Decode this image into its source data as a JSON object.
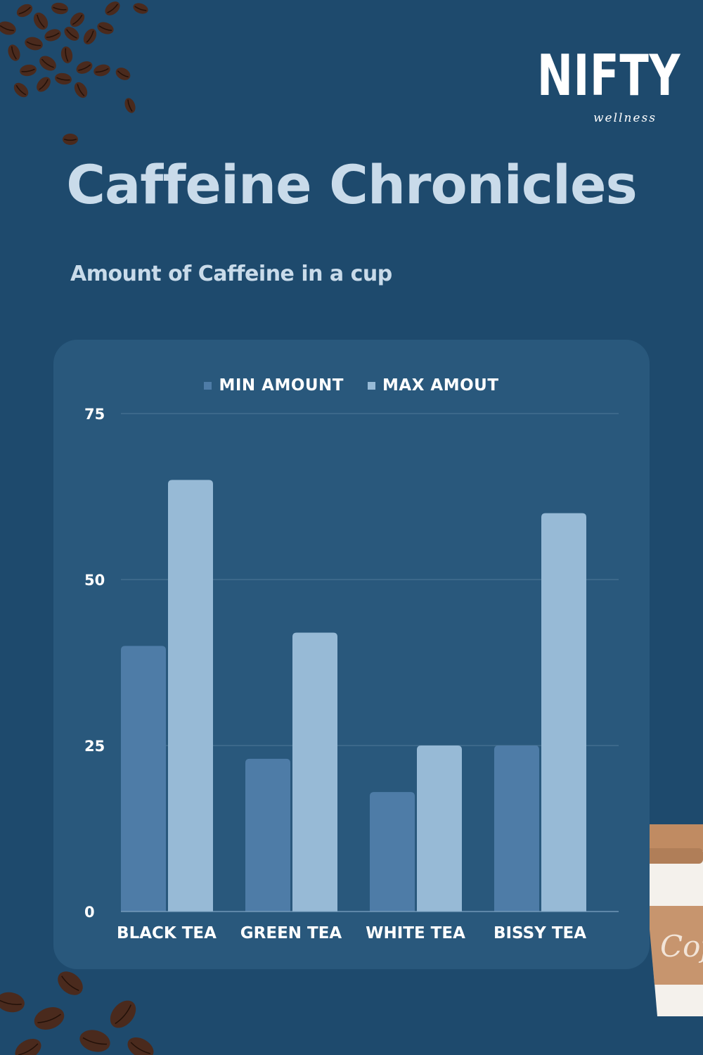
{
  "brand": {
    "name": "NIFTY",
    "tagline": "wellness"
  },
  "title": "Caffeine Chronicles",
  "subtitle": "Amount of Caffeine in a cup",
  "colors": {
    "background": "#1e4a6d",
    "panel": "#29587c",
    "min_series": "#4e7ca7",
    "max_series": "#97bad6",
    "title_text": "#c9dbea"
  },
  "decorations": {
    "top_left": "coffee-beans",
    "bottom_left": "coffee-beans",
    "bottom_right": "coffee-cup",
    "cup_text": "Coffee"
  },
  "chart_data": {
    "type": "bar",
    "categories": [
      "BLACK TEA",
      "GREEN TEA",
      "WHITE TEA",
      "BISSY TEA"
    ],
    "series": [
      {
        "name": "MIN AMOUNT",
        "values": [
          40,
          23,
          18,
          25
        ]
      },
      {
        "name": "MAX AMOUT",
        "values": [
          65,
          42,
          25,
          60
        ]
      }
    ],
    "yticks": [
      0,
      25,
      50,
      75
    ],
    "ylim": [
      0,
      75
    ],
    "grid": true,
    "legend": "top-center"
  }
}
